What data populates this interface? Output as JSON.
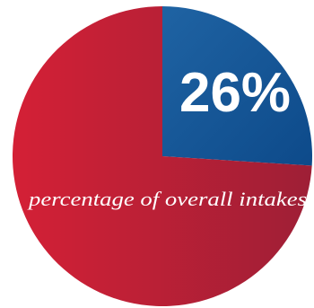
{
  "chart_data": {
    "type": "pie",
    "title": "",
    "slices": [
      {
        "value": 26,
        "color": "#1f63a3",
        "color_end": "#0d4a8a"
      },
      {
        "value": 74,
        "color": "#d42036",
        "color_end": "#9e1f36"
      }
    ],
    "labels": {
      "percent": "26%",
      "caption": "percentage of overall intakes"
    }
  }
}
